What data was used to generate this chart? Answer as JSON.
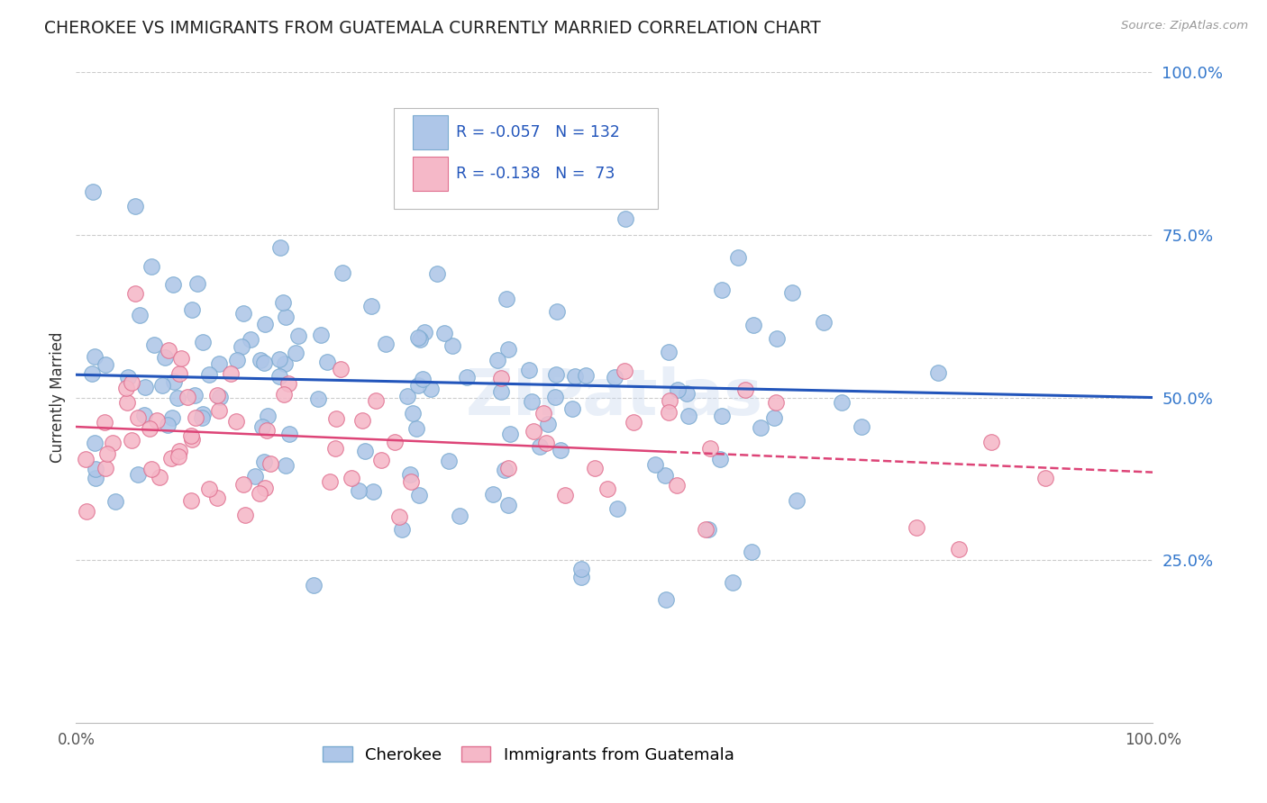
{
  "title": "CHEROKEE VS IMMIGRANTS FROM GUATEMALA CURRENTLY MARRIED CORRELATION CHART",
  "source": "Source: ZipAtlas.com",
  "ylabel": "Currently Married",
  "xlim": [
    0,
    1
  ],
  "ylim": [
    0,
    1
  ],
  "cherokee_color": "#aec6e8",
  "cherokee_edge_color": "#7aaad0",
  "guatemala_color": "#f5b8c8",
  "guatemala_edge_color": "#e07090",
  "blue_line_color": "#2255bb",
  "pink_line_color": "#dd4477",
  "legend_R1": "-0.057",
  "legend_N1": "132",
  "legend_R2": "-0.138",
  "legend_N2": "73",
  "watermark": "ZIPatlas",
  "legend_label1": "Cherokee",
  "legend_label2": "Immigrants from Guatemala",
  "background_color": "#ffffff",
  "grid_color": "#cccccc",
  "title_color": "#222222",
  "right_ytick_color": "#3377cc",
  "cherokee_seed": 7,
  "guatemala_seed": 99,
  "blue_line_y0": 0.535,
  "blue_line_y1": 0.5,
  "pink_line_y0": 0.455,
  "pink_line_y1": 0.385,
  "pink_line_solid_end": 0.55,
  "pink_line_x1": 1.0
}
